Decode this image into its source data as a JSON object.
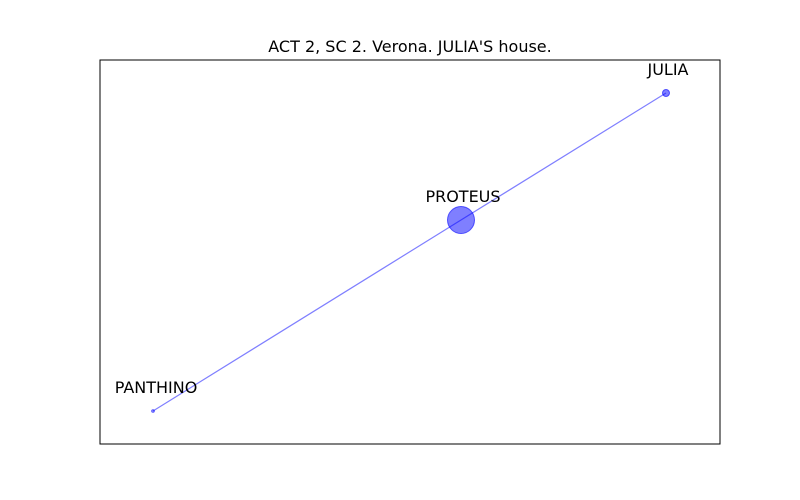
{
  "title": "ACT 2, SC 2. Verona. JULIA'S house.",
  "colors": {
    "node": "#0000ff",
    "edge": "#0000ff",
    "frame": "#000000"
  },
  "nodes": [
    {
      "id": "julia",
      "label": "JULIA",
      "size": "small"
    },
    {
      "id": "proteus",
      "label": "PROTEUS",
      "size": "large"
    },
    {
      "id": "panthino",
      "label": "PANTHINO",
      "size": "tiny"
    }
  ],
  "edges": [
    {
      "from": "panthino",
      "to": "proteus"
    },
    {
      "from": "proteus",
      "to": "julia"
    }
  ]
}
